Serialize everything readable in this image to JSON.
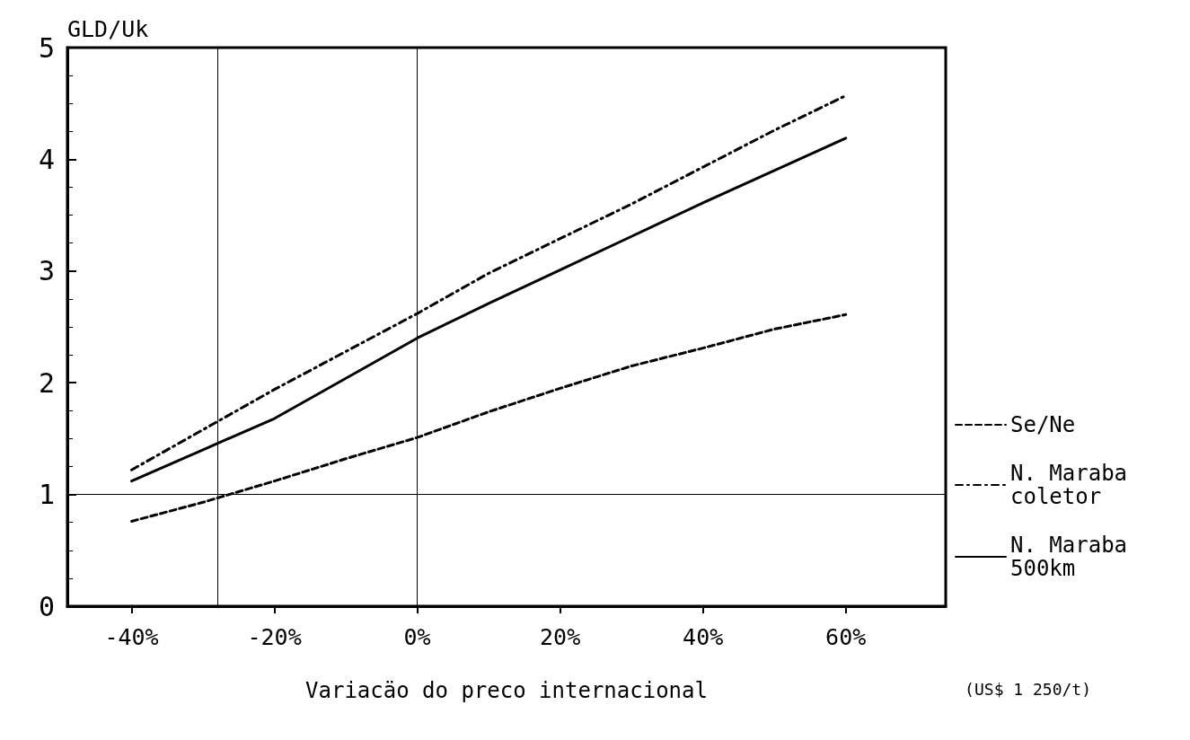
{
  "chart_data": {
    "type": "line",
    "xlabel": "Variacäo do preco internacional",
    "ylabel": "GLD/Uk",
    "annotations": [
      "(US$ 1 250/t)"
    ],
    "x": [
      -40,
      -30,
      -20,
      -10,
      0,
      10,
      20,
      30,
      40,
      50,
      60
    ],
    "series": [
      {
        "name": "Se/Ne",
        "color": "#000000",
        "line_style": "dashed",
        "values": [
          0.76,
          0.93,
          1.12,
          1.32,
          1.51,
          1.74,
          1.95,
          2.15,
          2.31,
          2.48,
          2.61
        ]
      },
      {
        "name": "N. Maraba coletor",
        "color": "#000000",
        "line_style": "dotted",
        "values": [
          1.22,
          1.58,
          1.94,
          2.28,
          2.62,
          2.98,
          3.29,
          3.6,
          3.93,
          4.26,
          4.57
        ]
      },
      {
        "name": "N. Maraba 500km",
        "color": "#000000",
        "line_style": "solid",
        "values": [
          1.12,
          1.4,
          1.68,
          2.04,
          2.4,
          2.71,
          3.01,
          3.31,
          3.61,
          3.9,
          4.19
        ]
      }
    ],
    "xlim": [
      -49,
      74
    ],
    "xticks": [
      {
        "value": -40,
        "label": "-40%"
      },
      {
        "value": -20,
        "label": "-20%"
      },
      {
        "value": 0,
        "label": "0%"
      },
      {
        "value": 20,
        "label": "20%"
      },
      {
        "value": 40,
        "label": "40%"
      },
      {
        "value": 60,
        "label": "60%"
      }
    ],
    "ylim": [
      0,
      5
    ],
    "yticks": [
      0,
      1,
      2,
      3,
      4,
      5
    ],
    "ref_lines": [
      {
        "axis": "y",
        "value": 1,
        "label": null
      },
      {
        "axis": "x",
        "value": 0,
        "label": null
      },
      {
        "axis": "x",
        "value": -28,
        "label": null
      }
    ],
    "grid": false,
    "legend": "right",
    "marker": "none"
  }
}
